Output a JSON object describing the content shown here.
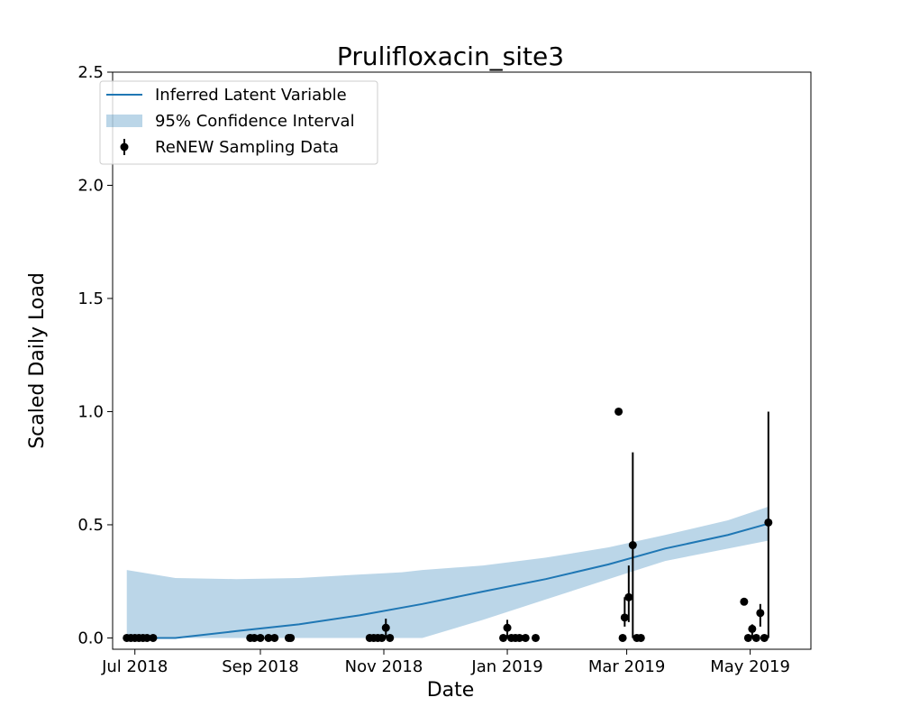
{
  "chart_data": {
    "type": "line",
    "title": "Prulifloxacin_site3",
    "xlabel": "Date",
    "ylabel": "Scaled Daily Load",
    "xlim": [
      "2018-06-20",
      "2019-05-31"
    ],
    "ylim": [
      -0.05,
      2.5
    ],
    "x_ticks": [
      {
        "date": "2018-07-01",
        "label": "Jul 2018"
      },
      {
        "date": "2018-09-01",
        "label": "Sep 2018"
      },
      {
        "date": "2018-11-01",
        "label": "Nov 2018"
      },
      {
        "date": "2019-01-01",
        "label": "Jan 2019"
      },
      {
        "date": "2019-03-01",
        "label": "Mar 2019"
      },
      {
        "date": "2019-05-01",
        "label": "May 2019"
      }
    ],
    "y_ticks": [
      {
        "value": 0.0,
        "label": "0.0"
      },
      {
        "value": 0.5,
        "label": "0.5"
      },
      {
        "value": 1.0,
        "label": "1.0"
      },
      {
        "value": 1.5,
        "label": "1.5"
      },
      {
        "value": 2.0,
        "label": "2.0"
      },
      {
        "value": 2.5,
        "label": "2.5"
      }
    ],
    "grid": false,
    "legend": {
      "position": "top-left",
      "entries": [
        {
          "label": "Inferred Latent Variable",
          "kind": "line"
        },
        {
          "label": "95% Confidence Interval",
          "kind": "band"
        },
        {
          "label": "ReNEW Sampling Data",
          "kind": "errorbar"
        }
      ]
    },
    "colors": {
      "line": "#1f77b4",
      "band": "#1f77b4",
      "band_alpha": 0.3,
      "points": "#000000"
    },
    "series": [
      {
        "name": "Inferred Latent Variable",
        "kind": "line",
        "points": [
          {
            "date": "2018-06-27",
            "y": 0.0
          },
          {
            "date": "2018-07-21",
            "y": 0.0
          },
          {
            "date": "2018-08-20",
            "y": 0.03
          },
          {
            "date": "2018-09-20",
            "y": 0.06
          },
          {
            "date": "2018-10-20",
            "y": 0.1
          },
          {
            "date": "2018-11-20",
            "y": 0.15
          },
          {
            "date": "2018-12-20",
            "y": 0.205
          },
          {
            "date": "2019-01-20",
            "y": 0.26
          },
          {
            "date": "2019-02-20",
            "y": 0.325
          },
          {
            "date": "2019-03-20",
            "y": 0.395
          },
          {
            "date": "2019-04-20",
            "y": 0.455
          },
          {
            "date": "2019-05-10",
            "y": 0.505
          }
        ]
      },
      {
        "name": "95% Confidence Interval",
        "kind": "band",
        "points": [
          {
            "date": "2018-06-27",
            "lower": 0.0,
            "upper": 0.3
          },
          {
            "date": "2018-07-21",
            "lower": 0.0,
            "upper": 0.265
          },
          {
            "date": "2018-08-20",
            "lower": 0.0,
            "upper": 0.26
          },
          {
            "date": "2018-09-20",
            "lower": 0.0,
            "upper": 0.265
          },
          {
            "date": "2018-10-20",
            "lower": 0.0,
            "upper": 0.28
          },
          {
            "date": "2018-11-10",
            "lower": 0.0,
            "upper": 0.29
          },
          {
            "date": "2018-11-20",
            "lower": 0.0,
            "upper": 0.3
          },
          {
            "date": "2018-12-20",
            "lower": 0.08,
            "upper": 0.32
          },
          {
            "date": "2019-01-20",
            "lower": 0.17,
            "upper": 0.355
          },
          {
            "date": "2019-02-20",
            "lower": 0.26,
            "upper": 0.4
          },
          {
            "date": "2019-03-20",
            "lower": 0.34,
            "upper": 0.455
          },
          {
            "date": "2019-04-20",
            "lower": 0.395,
            "upper": 0.52
          },
          {
            "date": "2019-05-10",
            "lower": 0.43,
            "upper": 0.58
          }
        ]
      },
      {
        "name": "ReNEW Sampling Data",
        "kind": "errorbar",
        "points": [
          {
            "date": "2018-06-27",
            "y": 0.0
          },
          {
            "date": "2018-06-29",
            "y": 0.0
          },
          {
            "date": "2018-07-01",
            "y": 0.0
          },
          {
            "date": "2018-07-03",
            "y": 0.0
          },
          {
            "date": "2018-07-05",
            "y": 0.0
          },
          {
            "date": "2018-07-07",
            "y": 0.0
          },
          {
            "date": "2018-07-10",
            "y": 0.0
          },
          {
            "date": "2018-08-27",
            "y": 0.0
          },
          {
            "date": "2018-08-29",
            "y": 0.0
          },
          {
            "date": "2018-09-01",
            "y": 0.0
          },
          {
            "date": "2018-09-05",
            "y": 0.0
          },
          {
            "date": "2018-09-08",
            "y": 0.0
          },
          {
            "date": "2018-09-15",
            "y": 0.0
          },
          {
            "date": "2018-09-16",
            "y": 0.0
          },
          {
            "date": "2018-10-25",
            "y": 0.0
          },
          {
            "date": "2018-10-27",
            "y": 0.0
          },
          {
            "date": "2018-10-29",
            "y": 0.0
          },
          {
            "date": "2018-10-31",
            "y": 0.0
          },
          {
            "date": "2018-11-02",
            "y": 0.045,
            "lower": 0.0,
            "upper": 0.085
          },
          {
            "date": "2018-11-04",
            "y": 0.0
          },
          {
            "date": "2018-12-30",
            "y": 0.0
          },
          {
            "date": "2019-01-01",
            "y": 0.045,
            "lower": 0.0,
            "upper": 0.08
          },
          {
            "date": "2019-01-03",
            "y": 0.0
          },
          {
            "date": "2019-01-05",
            "y": 0.0
          },
          {
            "date": "2019-01-07",
            "y": 0.0
          },
          {
            "date": "2019-01-10",
            "y": 0.0
          },
          {
            "date": "2019-01-15",
            "y": 0.0
          },
          {
            "date": "2019-02-25",
            "y": 1.0
          },
          {
            "date": "2019-02-27",
            "y": 0.0
          },
          {
            "date": "2019-02-28",
            "y": 0.09,
            "lower": 0.05,
            "upper": 0.18
          },
          {
            "date": "2019-03-02",
            "y": 0.18,
            "lower": 0.07,
            "upper": 0.32
          },
          {
            "date": "2019-03-04",
            "y": 0.41,
            "lower": 0.0,
            "upper": 0.82
          },
          {
            "date": "2019-03-06",
            "y": 0.0
          },
          {
            "date": "2019-03-08",
            "y": 0.0
          },
          {
            "date": "2019-04-28",
            "y": 0.16
          },
          {
            "date": "2019-04-30",
            "y": 0.0
          },
          {
            "date": "2019-05-02",
            "y": 0.04,
            "lower": 0.0,
            "upper": 0.06
          },
          {
            "date": "2019-05-04",
            "y": 0.0
          },
          {
            "date": "2019-05-06",
            "y": 0.11,
            "lower": 0.05,
            "upper": 0.15
          },
          {
            "date": "2019-05-08",
            "y": 0.0
          },
          {
            "date": "2019-05-10",
            "y": 0.51,
            "lower": 0.0,
            "upper": 1.0
          }
        ]
      }
    ]
  }
}
